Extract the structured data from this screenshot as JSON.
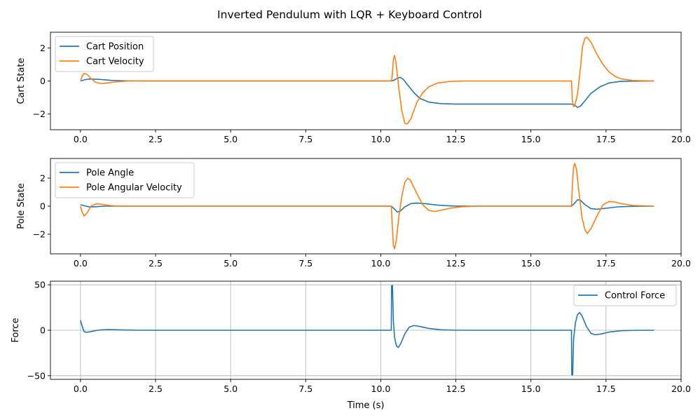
{
  "figure": {
    "title": "Inverted Pendulum with LQR + Keyboard Control"
  },
  "chart_data": [
    {
      "type": "line",
      "ylabel": "Cart State",
      "xlabel": "",
      "xlim": [
        -1.0,
        20.0
      ],
      "ylim": [
        -2.95,
        2.95
      ],
      "xticks": [
        "0.0",
        "2.5",
        "5.0",
        "7.5",
        "10.0",
        "12.5",
        "15.0",
        "17.5",
        "20.0"
      ],
      "yticks": [
        "2",
        "0",
        "−2"
      ],
      "grid": false,
      "legend_position": "upper-left",
      "series": [
        {
          "name": "Cart Position",
          "color": "#1f77b4",
          "points": [
            [
              0,
              0
            ],
            [
              0.15,
              0.08
            ],
            [
              0.3,
              0.12
            ],
            [
              0.6,
              0.1
            ],
            [
              1.0,
              0.04
            ],
            [
              1.5,
              0.01
            ],
            [
              2.0,
              0
            ],
            [
              10.35,
              0
            ],
            [
              10.45,
              0.05
            ],
            [
              10.55,
              0.17
            ],
            [
              10.65,
              0.22
            ],
            [
              10.75,
              0.1
            ],
            [
              10.9,
              -0.25
            ],
            [
              11.1,
              -0.7
            ],
            [
              11.3,
              -1.05
            ],
            [
              11.6,
              -1.28
            ],
            [
              12.0,
              -1.37
            ],
            [
              12.5,
              -1.4
            ],
            [
              16.35,
              -1.4
            ],
            [
              16.45,
              -1.45
            ],
            [
              16.55,
              -1.6
            ],
            [
              16.65,
              -1.52
            ],
            [
              16.8,
              -1.2
            ],
            [
              17.0,
              -0.75
            ],
            [
              17.3,
              -0.35
            ],
            [
              17.6,
              -0.12
            ],
            [
              18.0,
              -0.02
            ],
            [
              19.1,
              0
            ]
          ]
        },
        {
          "name": "Cart Velocity",
          "color": "#ff7f0e",
          "points": [
            [
              0,
              0
            ],
            [
              0.06,
              0.3
            ],
            [
              0.12,
              0.45
            ],
            [
              0.2,
              0.42
            ],
            [
              0.35,
              0.15
            ],
            [
              0.5,
              -0.08
            ],
            [
              0.7,
              -0.16
            ],
            [
              0.9,
              -0.12
            ],
            [
              1.2,
              -0.05
            ],
            [
              1.6,
              0
            ],
            [
              10.35,
              0
            ],
            [
              10.38,
              0.3
            ],
            [
              10.42,
              1.3
            ],
            [
              10.46,
              1.55
            ],
            [
              10.5,
              1.2
            ],
            [
              10.6,
              -0.4
            ],
            [
              10.7,
              -1.8
            ],
            [
              10.8,
              -2.55
            ],
            [
              10.88,
              -2.6
            ],
            [
              11.0,
              -2.3
            ],
            [
              11.2,
              -1.3
            ],
            [
              11.4,
              -0.7
            ],
            [
              11.6,
              -0.35
            ],
            [
              11.9,
              -0.12
            ],
            [
              12.3,
              -0.03
            ],
            [
              12.8,
              0
            ],
            [
              16.35,
              0
            ],
            [
              16.38,
              -1.2
            ],
            [
              16.42,
              -1.55
            ],
            [
              16.46,
              -1.5
            ],
            [
              16.55,
              -0.8
            ],
            [
              16.65,
              0.8
            ],
            [
              16.72,
              2.1
            ],
            [
              16.8,
              2.6
            ],
            [
              16.87,
              2.65
            ],
            [
              17.0,
              2.35
            ],
            [
              17.2,
              1.6
            ],
            [
              17.4,
              1.0
            ],
            [
              17.6,
              0.55
            ],
            [
              17.8,
              0.28
            ],
            [
              18.0,
              0.13
            ],
            [
              18.4,
              0.03
            ],
            [
              19.1,
              0
            ]
          ]
        }
      ]
    },
    {
      "type": "line",
      "ylabel": "Pole State",
      "xlabel": "",
      "xlim": [
        -1.0,
        20.0
      ],
      "ylim": [
        -3.4,
        3.4
      ],
      "xticks": [
        "0.0",
        "2.5",
        "5.0",
        "7.5",
        "10.0",
        "12.5",
        "15.0",
        "17.5",
        "20.0"
      ],
      "yticks": [
        "2",
        "0",
        "−2"
      ],
      "grid": false,
      "legend_position": "upper-left",
      "series": [
        {
          "name": "Pole Angle",
          "color": "#1f77b4",
          "points": [
            [
              0,
              0.1
            ],
            [
              0.15,
              0.02
            ],
            [
              0.3,
              -0.06
            ],
            [
              0.5,
              -0.04
            ],
            [
              0.8,
              0
            ],
            [
              10.35,
              0
            ],
            [
              10.45,
              -0.2
            ],
            [
              10.55,
              -0.42
            ],
            [
              10.65,
              -0.35
            ],
            [
              10.8,
              -0.05
            ],
            [
              11.0,
              0.18
            ],
            [
              11.2,
              0.22
            ],
            [
              11.5,
              0.17
            ],
            [
              11.9,
              0.07
            ],
            [
              12.4,
              0.01
            ],
            [
              13.0,
              0
            ],
            [
              16.35,
              0
            ],
            [
              16.45,
              0.2
            ],
            [
              16.55,
              0.45
            ],
            [
              16.65,
              0.42
            ],
            [
              16.8,
              0.1
            ],
            [
              17.0,
              -0.18
            ],
            [
              17.2,
              -0.22
            ],
            [
              17.5,
              -0.15
            ],
            [
              17.9,
              -0.05
            ],
            [
              18.4,
              -0.01
            ],
            [
              19.1,
              0
            ]
          ]
        },
        {
          "name": "Pole Angular Velocity",
          "color": "#ff7f0e",
          "points": [
            [
              0,
              0
            ],
            [
              0.05,
              -0.4
            ],
            [
              0.12,
              -0.7
            ],
            [
              0.2,
              -0.55
            ],
            [
              0.35,
              0
            ],
            [
              0.55,
              0.18
            ],
            [
              0.8,
              0.1
            ],
            [
              1.1,
              0.02
            ],
            [
              1.5,
              0
            ],
            [
              10.35,
              0
            ],
            [
              10.38,
              -1.2
            ],
            [
              10.42,
              -2.8
            ],
            [
              10.46,
              -3.05
            ],
            [
              10.52,
              -2.4
            ],
            [
              10.6,
              -0.8
            ],
            [
              10.7,
              0.7
            ],
            [
              10.8,
              1.7
            ],
            [
              10.9,
              2.0
            ],
            [
              11.0,
              1.8
            ],
            [
              11.2,
              0.9
            ],
            [
              11.4,
              0.1
            ],
            [
              11.6,
              -0.3
            ],
            [
              11.8,
              -0.38
            ],
            [
              12.0,
              -0.3
            ],
            [
              12.3,
              -0.15
            ],
            [
              12.7,
              -0.04
            ],
            [
              13.2,
              0
            ],
            [
              16.35,
              0
            ],
            [
              16.38,
              1.5
            ],
            [
              16.42,
              2.8
            ],
            [
              16.46,
              3.05
            ],
            [
              16.52,
              2.6
            ],
            [
              16.6,
              1.0
            ],
            [
              16.7,
              -0.8
            ],
            [
              16.8,
              -1.7
            ],
            [
              16.88,
              -1.95
            ],
            [
              17.0,
              -1.6
            ],
            [
              17.2,
              -0.7
            ],
            [
              17.4,
              0.1
            ],
            [
              17.6,
              0.32
            ],
            [
              17.8,
              0.3
            ],
            [
              18.0,
              0.18
            ],
            [
              18.4,
              0.05
            ],
            [
              19.1,
              0
            ]
          ]
        }
      ]
    },
    {
      "type": "line",
      "ylabel": "Force",
      "xlabel": "Time (s)",
      "xlim": [
        -1.0,
        20.0
      ],
      "ylim": [
        -54,
        54
      ],
      "xticks": [
        "0.0",
        "2.5",
        "5.0",
        "7.5",
        "10.0",
        "12.5",
        "15.0",
        "17.5",
        "20.0"
      ],
      "yticks": [
        "50",
        "0",
        "−50"
      ],
      "grid": true,
      "legend_position": "upper-right",
      "series": [
        {
          "name": "Control Force",
          "color": "#1f77b4",
          "points": [
            [
              0,
              11
            ],
            [
              0.05,
              5
            ],
            [
              0.12,
              -1.5
            ],
            [
              0.2,
              -2.3
            ],
            [
              0.35,
              -1.5
            ],
            [
              0.6,
              0.2
            ],
            [
              0.9,
              0.7
            ],
            [
              1.3,
              0.4
            ],
            [
              1.8,
              0.1
            ],
            [
              2.5,
              0
            ],
            [
              10.35,
              0
            ],
            [
              10.36,
              49
            ],
            [
              10.39,
              49
            ],
            [
              10.42,
              10
            ],
            [
              10.46,
              -8
            ],
            [
              10.52,
              -17
            ],
            [
              10.58,
              -19
            ],
            [
              10.66,
              -15
            ],
            [
              10.8,
              -4
            ],
            [
              10.95,
              3.5
            ],
            [
              11.1,
              5.2
            ],
            [
              11.3,
              4.2
            ],
            [
              11.6,
              2
            ],
            [
              12.0,
              0.5
            ],
            [
              12.5,
              0.1
            ],
            [
              13.0,
              0
            ],
            [
              16.35,
              0
            ],
            [
              16.36,
              -49
            ],
            [
              16.39,
              -49
            ],
            [
              16.42,
              -10
            ],
            [
              16.48,
              8
            ],
            [
              16.55,
              17
            ],
            [
              16.62,
              19.5
            ],
            [
              16.7,
              16
            ],
            [
              16.85,
              4
            ],
            [
              17.0,
              -3.5
            ],
            [
              17.15,
              -5
            ],
            [
              17.35,
              -4
            ],
            [
              17.6,
              -2
            ],
            [
              18.0,
              -0.5
            ],
            [
              18.5,
              -0.1
            ],
            [
              19.1,
              0
            ]
          ]
        }
      ]
    }
  ]
}
